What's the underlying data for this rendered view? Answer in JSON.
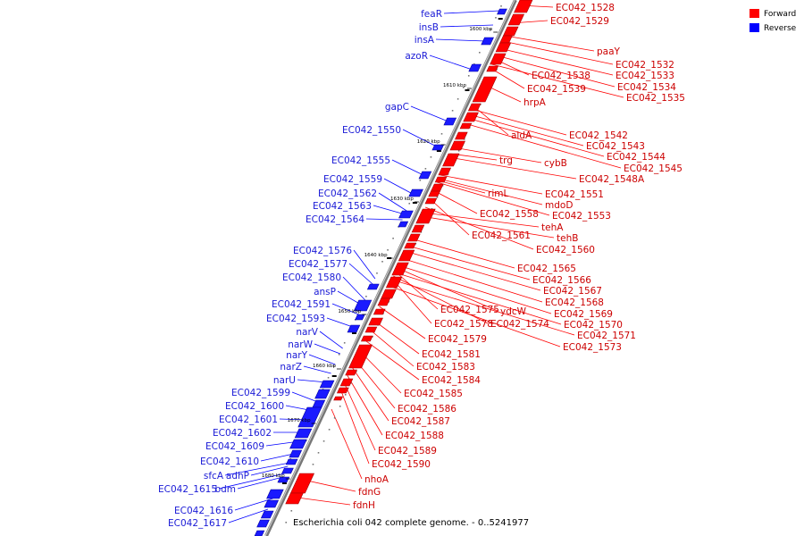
{
  "legend": {
    "forward_label": "Forward",
    "reverse_label": "Reverse",
    "forward_color": "#ff0000",
    "reverse_color": "#0000ff"
  },
  "caption": "Escherichia coli 042 complete genome. - 0..5241977",
  "ticks": [
    "1600 kbp",
    "1610 kbp",
    "1620 kbp",
    "1630 kbp",
    "1640 kbp",
    "1650 kbp",
    "1660 kbp",
    "1670 kbp",
    "1680 kbp"
  ],
  "forward_labels": [
    "EC042_1528",
    "EC042_1529",
    "paaY",
    "EC042_1532",
    "EC042_1533",
    "EC042_1534",
    "EC042_1535",
    "EC042_1538",
    "EC042_1539",
    "hrpA",
    "aldA",
    "EC042_1542",
    "EC042_1543",
    "EC042_1544",
    "EC042_1545",
    "trg",
    "cybB",
    "EC042_1548A",
    "rimL",
    "EC042_1551",
    "mdoD",
    "EC042_1558",
    "EC042_1553",
    "tehA",
    "EC042_1561",
    "tehB",
    "EC042_1560",
    "EC042_1565",
    "EC042_1566",
    "EC042_1567",
    "EC042_1568",
    "EC042_1575",
    "ydcW",
    "EC042_1569",
    "EC042_1578",
    "EC042_1574",
    "EC042_1570",
    "EC042_1571",
    "EC042_1579",
    "EC042_1573",
    "EC042_1581",
    "EC042_1583",
    "EC042_1584",
    "EC042_1585",
    "EC042_1586",
    "EC042_1587",
    "EC042_1588",
    "EC042_1589",
    "EC042_1590",
    "nhoA",
    "fdnG",
    "fdnH"
  ],
  "reverse_labels": [
    "feaR",
    "insB",
    "insA",
    "azoR",
    "gapC",
    "EC042_1550",
    "EC042_1555",
    "EC042_1559",
    "EC042_1562",
    "EC042_1563",
    "EC042_1564",
    "EC042_1576",
    "EC042_1577",
    "EC042_1580",
    "ansP",
    "EC042_1591",
    "EC042_1593",
    "narV",
    "narW",
    "narY",
    "narZ",
    "narU",
    "EC042_1599",
    "EC042_1600",
    "EC042_1601",
    "EC042_1602",
    "EC042_1609",
    "EC042_1610",
    "sfcA",
    "adhP",
    "EC042_1615",
    "bdm",
    "EC042_1616",
    "EC042_1617"
  ]
}
